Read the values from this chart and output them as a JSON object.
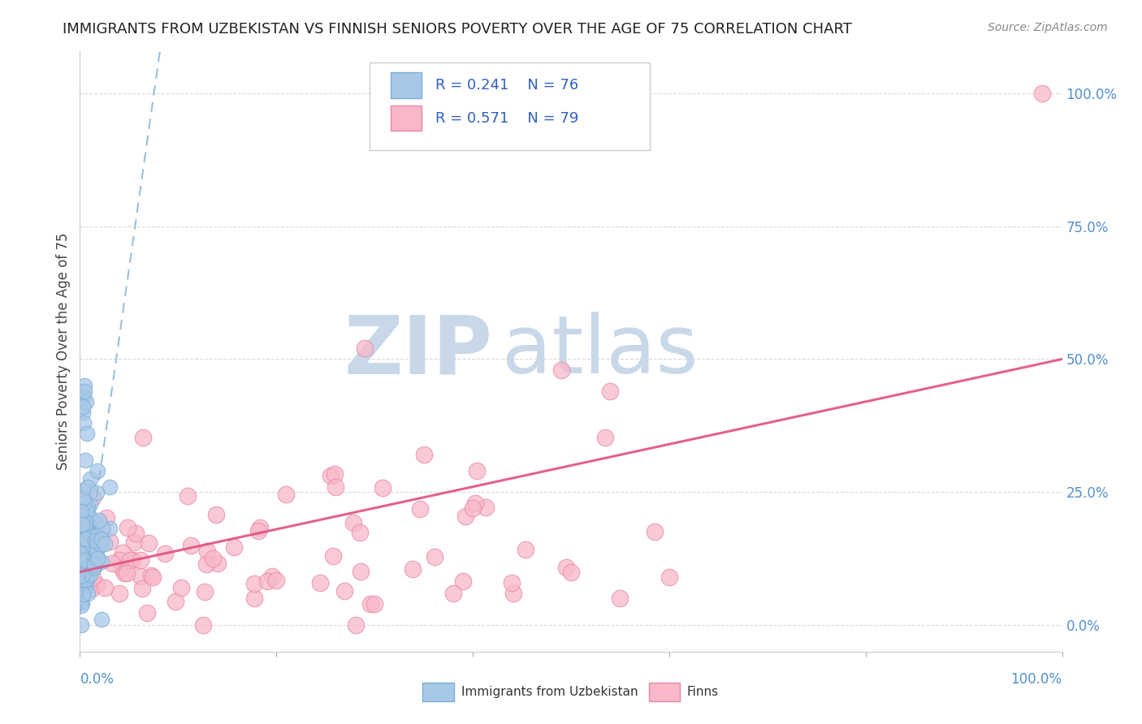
{
  "title": "IMMIGRANTS FROM UZBEKISTAN VS FINNISH SENIORS POVERTY OVER THE AGE OF 75 CORRELATION CHART",
  "source": "Source: ZipAtlas.com",
  "ylabel": "Seniors Poverty Over the Age of 75",
  "ytick_labels": [
    "0.0%",
    "25.0%",
    "50.0%",
    "75.0%",
    "100.0%"
  ],
  "ytick_values": [
    0,
    0.25,
    0.5,
    0.75,
    1.0
  ],
  "xlim": [
    0,
    1.0
  ],
  "ylim": [
    -0.05,
    1.08
  ],
  "legend_r1": "R = 0.241",
  "legend_n1": "N = 76",
  "legend_r2": "R = 0.571",
  "legend_n2": "N = 79",
  "blue_color": "#a8c8e8",
  "blue_edge": "#7aaed6",
  "pink_color": "#f8b8c8",
  "pink_edge": "#e888a8",
  "blue_line_color": "#5090d0",
  "blue_line_dashed_color": "#90b8d8",
  "pink_line_color": "#e05080",
  "watermark_zip": "ZIP",
  "watermark_atlas": "atlas",
  "watermark_color": "#c8d8e8",
  "title_fontsize": 13,
  "source_fontsize": 10,
  "axis_fontsize": 12,
  "legend_fontsize": 13,
  "ylabel_fontsize": 12,
  "blue_scatter_seed": 123,
  "pink_scatter_seed": 456
}
